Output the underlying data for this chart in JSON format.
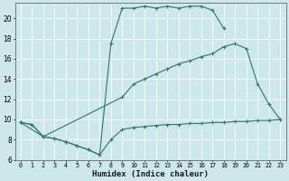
{
  "xlabel": "Humidex (Indice chaleur)",
  "bg_color": "#cce8ea",
  "line_color": "#2e7d72",
  "grid_color": "#ffffff",
  "xlim": [
    -0.5,
    23.5
  ],
  "ylim": [
    6,
    21.5
  ],
  "yticks": [
    6,
    8,
    10,
    12,
    14,
    16,
    18,
    20
  ],
  "xticks": [
    0,
    1,
    2,
    3,
    4,
    5,
    6,
    7,
    8,
    9,
    10,
    11,
    12,
    13,
    14,
    15,
    16,
    17,
    18,
    19,
    20,
    21,
    22,
    23
  ],
  "curve1_x": [
    0,
    1,
    2,
    3,
    4,
    5,
    6,
    7,
    8,
    9,
    10,
    11,
    12,
    13,
    14,
    15,
    16,
    17,
    18
  ],
  "curve1_y": [
    9.7,
    9.5,
    8.3,
    8.1,
    7.8,
    7.4,
    7.0,
    6.5,
    17.5,
    21.0,
    21.0,
    21.2,
    21.0,
    21.2,
    21.0,
    21.2,
    21.2,
    20.8,
    19.0
  ],
  "curve2_x": [
    0,
    2,
    9,
    10,
    11,
    12,
    13,
    14,
    15,
    16,
    17,
    18,
    19,
    20,
    21,
    22,
    23
  ],
  "curve2_y": [
    9.7,
    8.3,
    12.2,
    13.5,
    14.0,
    14.5,
    15.0,
    15.5,
    15.8,
    16.2,
    16.5,
    17.2,
    17.5,
    17.0,
    13.5,
    11.5,
    10.0
  ],
  "curve3_x": [
    0,
    1,
    2,
    3,
    4,
    5,
    6,
    7,
    8,
    9,
    10,
    11,
    12,
    13,
    14,
    15,
    16,
    17,
    18,
    19,
    20,
    21,
    22,
    23
  ],
  "curve3_y": [
    9.7,
    9.5,
    8.3,
    8.1,
    7.8,
    7.4,
    7.0,
    6.5,
    8.0,
    9.0,
    9.2,
    9.3,
    9.4,
    9.5,
    9.5,
    9.6,
    9.6,
    9.7,
    9.7,
    9.8,
    9.8,
    9.9,
    9.9,
    10.0
  ]
}
